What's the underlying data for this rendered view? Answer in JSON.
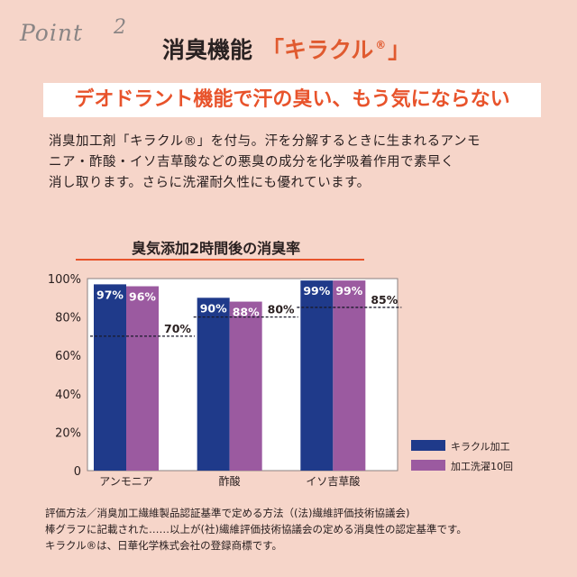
{
  "header": {
    "point_label": "Point",
    "point_number": "2",
    "title": "消臭機能",
    "title_accent_open": "「キラクル",
    "title_accent_mark": "®",
    "title_accent_close": "」"
  },
  "subtitle": "デオドラント機能で汗の臭い、もう気にならない",
  "body_lines": [
    "消臭加工剤「キラクル®」を付与。汗を分解するときに生まれるアンモ",
    "ニア・酢酸・イソ吉草酸などの悪臭の成分を化学吸着作用で素早く",
    "消し取ります。さらに洗濯耐久性にも優れています。"
  ],
  "chart_title": "臭気添加2時間後の消臭率",
  "chart_data": {
    "type": "bar",
    "categories": [
      "アンモニア",
      "酢酸",
      "イソ吉草酸"
    ],
    "series": [
      {
        "name": "キラクル加工",
        "values": [
          97,
          90,
          99
        ],
        "labels": [
          "97%",
          "90%",
          "99%"
        ],
        "color": "#1f3a8a"
      },
      {
        "name": "加工洗濯10回",
        "values": [
          96,
          88,
          99
        ],
        "labels": [
          "96%",
          "88%",
          "99%"
        ],
        "color": "#9b5aa0"
      }
    ],
    "reference": {
      "values": [
        70,
        80,
        85
      ],
      "labels": [
        "70%",
        "80%",
        "85%"
      ]
    },
    "yticks": [
      {
        "value": 100,
        "label": "100%"
      },
      {
        "value": 80,
        "label": "80%"
      },
      {
        "value": 60,
        "label": "60%"
      },
      {
        "value": 40,
        "label": "40%"
      },
      {
        "value": 20,
        "label": "20%"
      },
      {
        "value": 0,
        "label": "0"
      }
    ],
    "ylim": [
      0,
      100
    ],
    "legend_position": "bottom-right",
    "grid": false
  },
  "footnotes": [
    "評価方法／消臭加工繊維製品認証基準で定める方法（(法)繊維評価技術協議会)",
    "棒グラフに記載された……以上が(社)繊維評価技術協議会の定める消臭性の認定基準です。",
    "キラクル®は、日華化学株式会社の登録商標です。"
  ],
  "colors": {
    "background": "#f6d5c9",
    "accent": "#e8532b",
    "navy": "#1f3a8a",
    "purple": "#9b5aa0"
  }
}
